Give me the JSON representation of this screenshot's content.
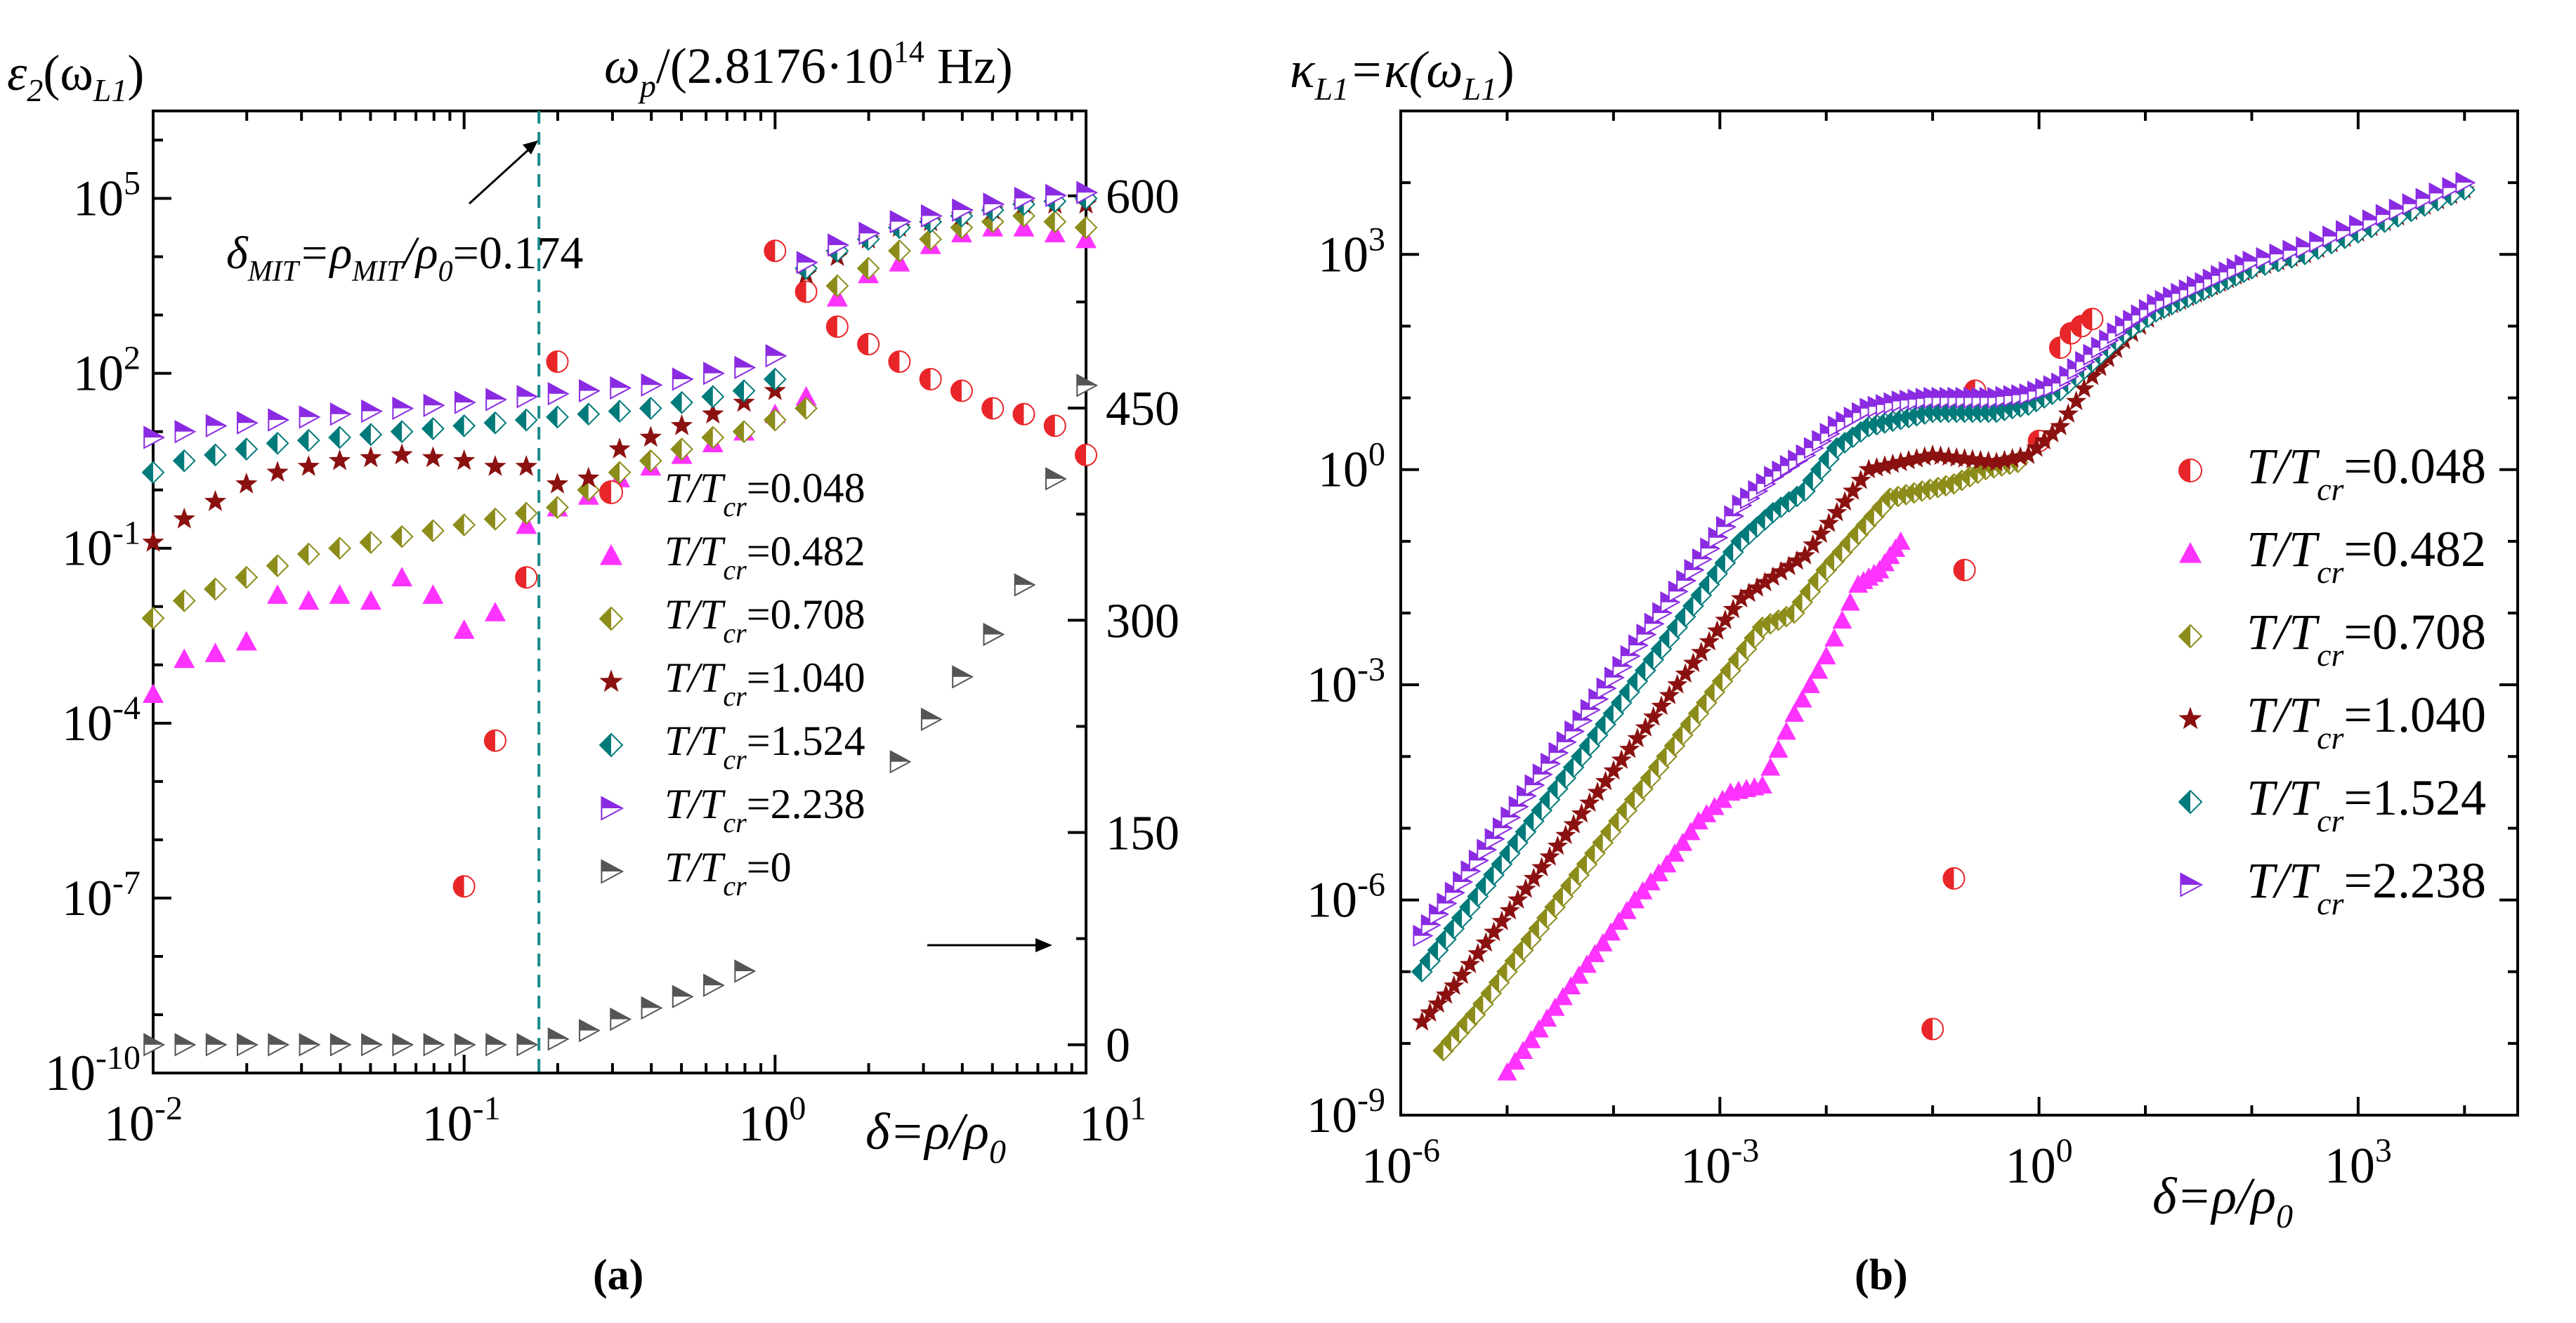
{
  "chart_data": [
    {
      "panel": "(a)",
      "type": "scatter",
      "caption": "(a)",
      "xscale": "log",
      "xlim_log10": [
        -2,
        1
      ],
      "x_ticks": [
        {
          "base": "10",
          "exp": "-2"
        },
        {
          "base": "10",
          "exp": "-1"
        },
        {
          "base": "10",
          "exp": "0"
        },
        {
          "base": "10",
          "exp": "1"
        }
      ],
      "left_axis": {
        "label_parts": [
          "ε",
          "2",
          "(ω",
          "L1",
          ")"
        ],
        "scale": "log",
        "ylim_log10": [
          -10,
          6.5
        ],
        "ticks": [
          {
            "base": "10",
            "exp": "-10"
          },
          {
            "base": "10",
            "exp": "-7"
          },
          {
            "base": "10",
            "exp": "-4"
          },
          {
            "base": "10",
            "exp": "-1"
          },
          {
            "base": "10",
            "exp": "2"
          },
          {
            "base": "10",
            "exp": "5"
          }
        ]
      },
      "right_axis": {
        "label_parts": [
          "ω",
          "p",
          "/(2.8176·10",
          "14",
          " Hz)"
        ],
        "scale": "linear",
        "ylim": [
          -20,
          660
        ],
        "ticks": [
          "0",
          "150",
          "300",
          "450",
          "600"
        ]
      },
      "xlabel_parts": [
        "δ=ρ/ρ",
        "0"
      ],
      "annotation": {
        "parts": [
          "δ",
          "MIT",
          "=ρ",
          "MIT",
          "/ρ",
          "0",
          "=0.174"
        ],
        "x_value": 0.174
      },
      "series": [
        {
          "name": "T/T_cr=0.048",
          "label_main": "T/T",
          "label_sub": "cr",
          "label_value": "=0.048",
          "marker": "half-circle",
          "color": "#e8262a",
          "axis": "left",
          "x_log": [
            -1.0,
            -0.9,
            -0.8,
            -0.7,
            0.0,
            0.1,
            0.2,
            0.3,
            0.4,
            0.5,
            0.6,
            0.7,
            0.8,
            0.9,
            1.0
          ],
          "y_log": [
            -6.8,
            -4.3,
            -1.5,
            2.2,
            4.1,
            3.4,
            2.8,
            2.5,
            2.2,
            1.9,
            1.7,
            1.4,
            1.3,
            1.1,
            0.6
          ]
        },
        {
          "name": "T/T_cr=0.482",
          "label_main": "T/T",
          "label_sub": "cr",
          "label_value": "=0.482",
          "marker": "triangle-up",
          "color": "#ff33ff",
          "axis": "left",
          "x_log": [
            -2.0,
            -1.9,
            -1.8,
            -1.7,
            -1.6,
            -1.5,
            -1.4,
            -1.3,
            -1.2,
            -1.1,
            -1.0,
            -0.9,
            -0.8,
            -0.7,
            -0.6,
            -0.5,
            -0.4,
            -0.3,
            -0.2,
            -0.1,
            0.0,
            0.1,
            0.2,
            0.3,
            0.4,
            0.5,
            0.6,
            0.7,
            0.8,
            0.9,
            1.0
          ],
          "y_log": [
            -3.5,
            -2.9,
            -2.8,
            -2.6,
            -1.8,
            -1.9,
            -1.8,
            -1.9,
            -1.5,
            -1.8,
            -2.4,
            -2.1,
            -0.6,
            -0.3,
            -0.1,
            0.2,
            0.4,
            0.6,
            0.8,
            1.0,
            1.3,
            1.6,
            3.3,
            3.7,
            3.9,
            4.2,
            4.4,
            4.5,
            4.5,
            4.4,
            4.3
          ]
        },
        {
          "name": "T/T_cr=0.708",
          "label_main": "T/T",
          "label_sub": "cr",
          "label_value": "=0.708",
          "marker": "half-diamond",
          "color": "#8c8c1a",
          "axis": "left",
          "x_log": [
            -2.0,
            -1.9,
            -1.8,
            -1.7,
            -1.6,
            -1.5,
            -1.4,
            -1.3,
            -1.2,
            -1.1,
            -1.0,
            -0.9,
            -0.8,
            -0.7,
            -0.6,
            -0.5,
            -0.4,
            -0.3,
            -0.2,
            -0.1,
            0.0,
            0.1,
            0.2,
            0.3,
            0.4,
            0.5,
            0.6,
            0.7,
            0.8,
            0.9,
            1.0
          ],
          "y_log": [
            -2.2,
            -1.9,
            -1.7,
            -1.5,
            -1.3,
            -1.1,
            -1.0,
            -0.9,
            -0.8,
            -0.7,
            -0.6,
            -0.5,
            -0.4,
            -0.3,
            0.0,
            0.3,
            0.5,
            0.7,
            0.9,
            1.0,
            1.2,
            1.4,
            3.5,
            3.8,
            4.1,
            4.3,
            4.5,
            4.6,
            4.7,
            4.6,
            4.5
          ]
        },
        {
          "name": "T/T_cr=1.040",
          "label_main": "T/T",
          "label_sub": "cr",
          "label_value": "=1.040",
          "marker": "star",
          "color": "#8b1010",
          "axis": "left",
          "x_log": [
            -2.0,
            -1.9,
            -1.8,
            -1.7,
            -1.6,
            -1.5,
            -1.4,
            -1.3,
            -1.2,
            -1.1,
            -1.0,
            -0.9,
            -0.8,
            -0.7,
            -0.6,
            -0.5,
            -0.4,
            -0.3,
            -0.2,
            -0.1,
            0.0,
            0.1,
            0.2,
            0.3,
            0.4,
            0.5,
            0.6,
            0.7,
            0.8,
            0.9,
            1.0
          ],
          "y_log": [
            -0.9,
            -0.5,
            -0.2,
            0.1,
            0.3,
            0.4,
            0.5,
            0.55,
            0.6,
            0.55,
            0.5,
            0.4,
            0.4,
            0.1,
            0.2,
            0.7,
            0.9,
            1.1,
            1.3,
            1.5,
            1.7,
            3.7,
            4.0,
            4.3,
            4.5,
            4.6,
            4.7,
            4.8,
            4.9,
            4.9,
            4.9
          ]
        },
        {
          "name": "T/T_cr=1.524",
          "label_main": "T/T",
          "label_sub": "cr",
          "label_value": "=1.524",
          "marker": "half-diamond",
          "color": "#007a7a",
          "axis": "left",
          "x_log": [
            -2.0,
            -1.9,
            -1.8,
            -1.7,
            -1.6,
            -1.5,
            -1.4,
            -1.3,
            -1.2,
            -1.1,
            -1.0,
            -0.9,
            -0.8,
            -0.7,
            -0.6,
            -0.5,
            -0.4,
            -0.3,
            -0.2,
            -0.1,
            0.0,
            0.1,
            0.2,
            0.3,
            0.4,
            0.5,
            0.6,
            0.7,
            0.8,
            0.9,
            1.0
          ],
          "y_log": [
            0.3,
            0.5,
            0.6,
            0.7,
            0.8,
            0.85,
            0.9,
            0.95,
            1.0,
            1.05,
            1.1,
            1.15,
            1.2,
            1.25,
            1.3,
            1.35,
            1.4,
            1.5,
            1.6,
            1.7,
            1.9,
            3.8,
            4.1,
            4.3,
            4.5,
            4.6,
            4.7,
            4.8,
            4.9,
            4.95,
            5.0
          ]
        },
        {
          "name": "T/T_cr=2.238",
          "label_main": "T/T",
          "label_sub": "cr",
          "label_value": "=2.238",
          "marker": "triangle-right",
          "color": "#8a2be2",
          "axis": "left",
          "x_log": [
            -2.0,
            -1.9,
            -1.8,
            -1.7,
            -1.6,
            -1.5,
            -1.4,
            -1.3,
            -1.2,
            -1.1,
            -1.0,
            -0.9,
            -0.8,
            -0.7,
            -0.6,
            -0.5,
            -0.4,
            -0.3,
            -0.2,
            -0.1,
            0.0,
            0.1,
            0.2,
            0.3,
            0.4,
            0.5,
            0.6,
            0.7,
            0.8,
            0.9,
            1.0
          ],
          "y_log": [
            0.9,
            1.0,
            1.1,
            1.15,
            1.2,
            1.25,
            1.3,
            1.35,
            1.4,
            1.45,
            1.5,
            1.55,
            1.6,
            1.65,
            1.7,
            1.75,
            1.8,
            1.9,
            2.0,
            2.1,
            2.3,
            3.9,
            4.2,
            4.4,
            4.6,
            4.7,
            4.8,
            4.9,
            5.0,
            5.05,
            5.1
          ]
        },
        {
          "name": "T/T_cr=0",
          "label_main": "T/T",
          "label_sub": "cr",
          "label_value": "=0",
          "marker": "triangle-right",
          "color": "#555555",
          "axis": "right",
          "x_log": [
            -2.0,
            -1.9,
            -1.8,
            -1.7,
            -1.6,
            -1.5,
            -1.4,
            -1.3,
            -1.2,
            -1.1,
            -1.0,
            -0.9,
            -0.8,
            -0.7,
            -0.6,
            -0.5,
            -0.4,
            -0.3,
            -0.2,
            -0.1,
            0.4,
            0.5,
            0.6,
            0.7,
            0.8,
            0.9,
            1.0
          ],
          "y": [
            0,
            0,
            0,
            0,
            0,
            0,
            0,
            0,
            0,
            0,
            0,
            0,
            0,
            4,
            10,
            18,
            26,
            34,
            42,
            52,
            200,
            230,
            260,
            290,
            325,
            400,
            466
          ]
        }
      ]
    },
    {
      "panel": "(b)",
      "type": "scatter",
      "caption": "(b)",
      "xscale": "log",
      "xlim_log10": [
        -6,
        4.5
      ],
      "x_ticks": [
        {
          "base": "10",
          "exp": "-6"
        },
        {
          "base": "10",
          "exp": "-3"
        },
        {
          "base": "10",
          "exp": "0"
        },
        {
          "base": "10",
          "exp": "3"
        }
      ],
      "y_axis": {
        "label_parts": [
          "κ",
          "L1",
          "=κ(ω",
          "L1",
          ")"
        ],
        "scale": "log",
        "ylim_log10": [
          -9,
          5
        ],
        "ticks": [
          {
            "base": "10",
            "exp": "-9"
          },
          {
            "base": "10",
            "exp": "-6"
          },
          {
            "base": "10",
            "exp": "-3"
          },
          {
            "base": "10",
            "exp": "0"
          },
          {
            "base": "10",
            "exp": "3"
          }
        ]
      },
      "xlabel_parts": [
        "δ=ρ/ρ",
        "0"
      ],
      "series": [
        {
          "name": "T/T_cr=0.048",
          "label_main": "T/T",
          "label_sub": "cr",
          "label_value": "=0.048",
          "marker": "half-circle",
          "color": "#e8262a",
          "x_log": [
            -1.0,
            -0.8,
            -0.7,
            -0.6,
            0.0,
            0.1,
            0.2,
            0.3,
            0.4,
            0.5
          ],
          "y_log": [
            -7.8,
            -5.7,
            -1.4,
            1.1,
            0.4,
            1.1,
            1.7,
            1.9,
            2.0,
            2.1
          ]
        },
        {
          "name": "T/T_cr=0.482",
          "label_main": "T/T",
          "label_sub": "cr",
          "label_value": "=0.482",
          "marker": "triangle-up",
          "color": "#ff33ff",
          "x_log": [
            -5.0,
            -4.7,
            -4.4,
            -4.1,
            -3.8,
            -3.5,
            -3.2,
            -2.9,
            -2.6,
            -2.3,
            -2.0,
            -1.7,
            -1.5,
            -1.3
          ],
          "y_log": [
            -8.4,
            -7.8,
            -7.2,
            -6.6,
            -6.0,
            -5.5,
            -4.9,
            -4.5,
            -4.4,
            -3.4,
            -2.6,
            -1.6,
            -1.4,
            -1.0
          ]
        },
        {
          "name": "T/T_cr=0.708",
          "label_main": "T/T",
          "label_sub": "cr",
          "label_value": "=0.708",
          "marker": "half-diamond",
          "color": "#8c8c1a",
          "x_log": [
            -5.6,
            -5.3,
            -5.0,
            -4.7,
            -4.4,
            -4.1,
            -3.8,
            -3.5,
            -3.2,
            -2.9,
            -2.6,
            -2.3,
            -2.0,
            -1.7,
            -1.4,
            -1.1,
            -0.8,
            -0.5,
            -0.2
          ],
          "y_log": [
            -8.1,
            -7.6,
            -7.0,
            -6.4,
            -5.8,
            -5.2,
            -4.6,
            -4.0,
            -3.4,
            -2.8,
            -2.2,
            -2.0,
            -1.4,
            -0.9,
            -0.4,
            -0.3,
            -0.2,
            0.0,
            0.1
          ]
        },
        {
          "name": "T/T_cr=1.040",
          "label_main": "T/T",
          "label_sub": "cr",
          "label_value": "=1.040",
          "marker": "star",
          "color": "#8b1010",
          "x_log": [
            -5.8,
            -5.5,
            -5.2,
            -4.9,
            -4.6,
            -4.3,
            -4.0,
            -3.7,
            -3.4,
            -3.1,
            -2.8,
            -2.5,
            -2.2,
            -1.9,
            -1.6,
            -1.3,
            -1.0,
            -0.7,
            -0.4,
            -0.1,
            0.2,
            0.5,
            0.8,
            1.1,
            1.4,
            1.7,
            2.0,
            2.5,
            3.0,
            3.5,
            4.0
          ],
          "y_log": [
            -7.7,
            -7.2,
            -6.6,
            -6.0,
            -5.4,
            -4.8,
            -4.2,
            -3.6,
            -3.0,
            -2.4,
            -1.8,
            -1.5,
            -1.2,
            -0.6,
            0.0,
            0.1,
            0.2,
            0.15,
            0.1,
            0.2,
            0.6,
            1.3,
            1.8,
            2.2,
            2.4,
            2.6,
            2.8,
            3.0,
            3.3,
            3.6,
            3.9
          ]
        },
        {
          "name": "T/T_cr=1.524",
          "label_main": "T/T",
          "label_sub": "cr",
          "label_value": "=1.524",
          "marker": "half-diamond",
          "color": "#007a7a",
          "x_log": [
            -5.8,
            -5.5,
            -5.2,
            -4.9,
            -4.6,
            -4.3,
            -4.0,
            -3.7,
            -3.4,
            -3.1,
            -2.8,
            -2.5,
            -2.2,
            -1.9,
            -1.6,
            -1.3,
            -1.0,
            -0.7,
            -0.4,
            -0.1,
            0.2,
            0.5,
            0.8,
            1.1,
            1.4,
            1.7,
            2.0,
            2.5,
            3.0,
            3.5,
            4.0
          ],
          "y_log": [
            -7.0,
            -6.4,
            -5.8,
            -5.2,
            -4.6,
            -4.0,
            -3.4,
            -2.8,
            -2.2,
            -1.6,
            -1.0,
            -0.6,
            -0.3,
            0.3,
            0.6,
            0.7,
            0.8,
            0.8,
            0.8,
            0.9,
            1.1,
            1.5,
            1.9,
            2.2,
            2.4,
            2.6,
            2.8,
            3.0,
            3.3,
            3.6,
            3.9
          ]
        },
        {
          "name": "T/T_cr=2.238",
          "label_main": "T/T",
          "label_sub": "cr",
          "label_value": "=2.238",
          "marker": "triangle-right",
          "color": "#8a2be2",
          "x_log": [
            -5.8,
            -5.5,
            -5.2,
            -4.9,
            -4.6,
            -4.3,
            -4.0,
            -3.7,
            -3.4,
            -3.1,
            -2.8,
            -2.5,
            -2.2,
            -1.9,
            -1.6,
            -1.3,
            -1.0,
            -0.7,
            -0.4,
            -0.1,
            0.2,
            0.5,
            0.8,
            1.1,
            1.4,
            1.7,
            2.0,
            2.5,
            3.0,
            3.5,
            4.0
          ],
          "y_log": [
            -6.5,
            -5.9,
            -5.3,
            -4.7,
            -4.1,
            -3.5,
            -2.9,
            -2.3,
            -1.7,
            -1.1,
            -0.5,
            -0.1,
            0.2,
            0.6,
            0.85,
            0.95,
            1.0,
            1.0,
            1.0,
            1.05,
            1.2,
            1.6,
            2.0,
            2.3,
            2.5,
            2.7,
            2.9,
            3.1,
            3.4,
            3.7,
            4.0
          ]
        }
      ]
    }
  ]
}
